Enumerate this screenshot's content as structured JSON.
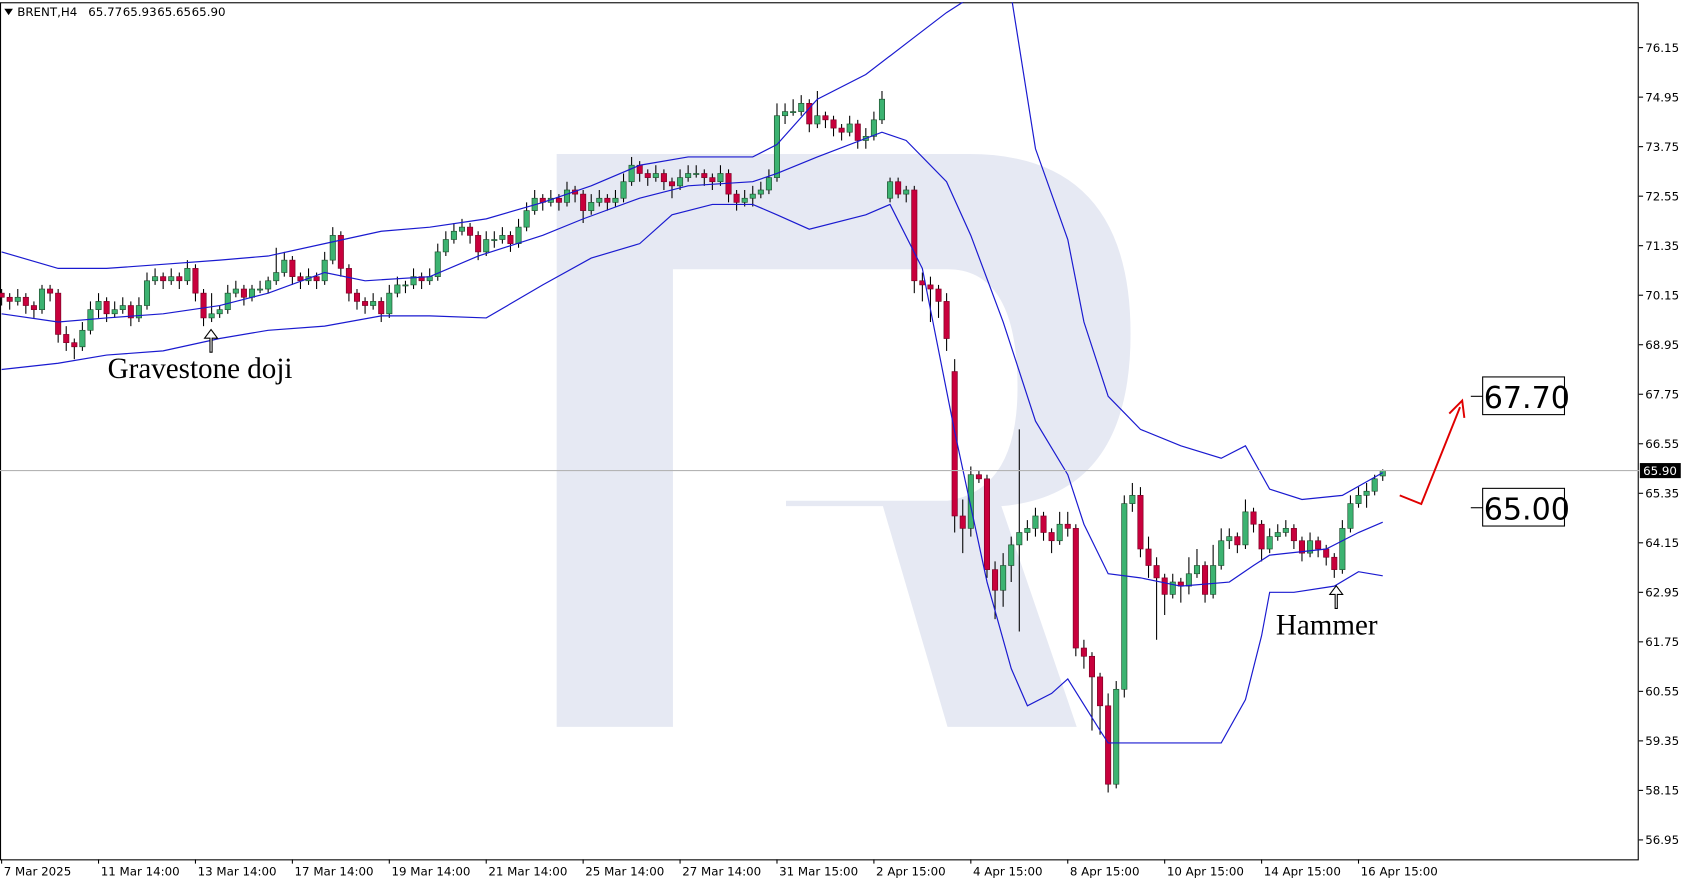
{
  "chart_data": {
    "type": "candlestick",
    "symbol": "BRENT,H4",
    "last_labels": [
      "65.77",
      "65.93",
      "65.65",
      "65.90"
    ],
    "xlim": [
      -0.2,
      202.7
    ],
    "xticks": [
      {
        "value": 0,
        "label": "7 Mar 2025"
      },
      {
        "value": 12,
        "label": "11 Mar 14:00"
      },
      {
        "value": 24,
        "label": "13 Mar 14:00"
      },
      {
        "value": 36,
        "label": "17 Mar 14:00"
      },
      {
        "value": 48,
        "label": "19 Mar 14:00"
      },
      {
        "value": 60,
        "label": "21 Mar 14:00"
      },
      {
        "value": 72,
        "label": "25 Mar 14:00"
      },
      {
        "value": 84,
        "label": "27 Mar 14:00"
      },
      {
        "value": 96,
        "label": "31 Mar 15:00"
      },
      {
        "value": 108,
        "label": "2 Apr 15:00"
      },
      {
        "value": 120,
        "label": "4 Apr 15:00"
      },
      {
        "value": 132,
        "label": "8 Apr 15:00"
      },
      {
        "value": 144,
        "label": "10 Apr 15:00"
      },
      {
        "value": 156,
        "label": "14 Apr 15:00"
      },
      {
        "value": 168,
        "label": "16 Apr 15:00"
      }
    ],
    "ylim": [
      56.48,
      77.25
    ],
    "yticks": [
      56.95,
      58.15,
      59.35,
      60.55,
      61.75,
      62.95,
      64.15,
      65.35,
      66.55,
      67.75,
      68.95,
      70.15,
      71.35,
      72.55,
      73.75,
      74.95,
      76.15
    ],
    "up_color": "#3cb371",
    "down_color": "#c8003c",
    "candles": [
      [
        70.2,
        70.3,
        69.9,
        70.1
      ],
      [
        70.1,
        70.2,
        69.8,
        70.0
      ],
      [
        70.0,
        70.3,
        69.9,
        70.1
      ],
      [
        70.1,
        70.2,
        69.7,
        69.9
      ],
      [
        69.9,
        70.0,
        69.6,
        69.8
      ],
      [
        69.8,
        70.4,
        69.7,
        70.3
      ],
      [
        70.3,
        70.4,
        70.0,
        70.2
      ],
      [
        70.2,
        70.3,
        69.0,
        69.2
      ],
      [
        69.2,
        69.4,
        68.8,
        69.0
      ],
      [
        69.0,
        69.1,
        68.6,
        68.9
      ],
      [
        68.9,
        69.5,
        68.8,
        69.3
      ],
      [
        69.3,
        70.0,
        69.2,
        69.8
      ],
      [
        69.8,
        70.2,
        69.6,
        70.0
      ],
      [
        70.0,
        70.1,
        69.5,
        69.7
      ],
      [
        69.7,
        70.0,
        69.6,
        69.8
      ],
      [
        69.8,
        70.1,
        69.7,
        69.9
      ],
      [
        69.9,
        70.0,
        69.4,
        69.6
      ],
      [
        69.6,
        70.1,
        69.5,
        69.9
      ],
      [
        69.9,
        70.7,
        69.8,
        70.5
      ],
      [
        70.5,
        70.8,
        70.4,
        70.6
      ],
      [
        70.6,
        70.7,
        70.3,
        70.5
      ],
      [
        70.5,
        70.8,
        70.4,
        70.6
      ],
      [
        70.6,
        70.7,
        70.3,
        70.5
      ],
      [
        70.5,
        71.0,
        70.4,
        70.8
      ],
      [
        70.8,
        70.9,
        70.0,
        70.2
      ],
      [
        70.2,
        70.3,
        69.4,
        69.6
      ],
      [
        69.6,
        70.2,
        69.5,
        69.7
      ],
      [
        69.7,
        69.9,
        69.6,
        69.8
      ],
      [
        69.8,
        70.4,
        69.7,
        70.2
      ],
      [
        70.2,
        70.5,
        70.1,
        70.3
      ],
      [
        70.3,
        70.4,
        69.9,
        70.1
      ],
      [
        70.1,
        70.4,
        70.0,
        70.3
      ],
      [
        70.3,
        70.5,
        70.2,
        70.3
      ],
      [
        70.3,
        70.6,
        70.2,
        70.5
      ],
      [
        70.5,
        71.3,
        70.4,
        70.7
      ],
      [
        70.7,
        71.2,
        70.6,
        71.0
      ],
      [
        71.0,
        71.1,
        70.4,
        70.6
      ],
      [
        70.6,
        70.7,
        70.3,
        70.5
      ],
      [
        70.5,
        70.8,
        70.4,
        70.6
      ],
      [
        70.6,
        70.7,
        70.3,
        70.5
      ],
      [
        70.5,
        71.2,
        70.4,
        71.0
      ],
      [
        71.0,
        71.8,
        70.9,
        71.6
      ],
      [
        71.6,
        71.7,
        70.6,
        70.8
      ],
      [
        70.8,
        70.9,
        70.0,
        70.2
      ],
      [
        70.2,
        70.3,
        69.8,
        70.0
      ],
      [
        70.0,
        70.1,
        69.7,
        69.9
      ],
      [
        69.9,
        70.2,
        69.8,
        70.0
      ],
      [
        70.0,
        70.1,
        69.5,
        69.7
      ],
      [
        69.7,
        70.4,
        69.6,
        70.2
      ],
      [
        70.2,
        70.6,
        70.1,
        70.4
      ],
      [
        70.4,
        70.5,
        70.2,
        70.4
      ],
      [
        70.4,
        70.8,
        70.3,
        70.6
      ],
      [
        70.6,
        70.7,
        70.3,
        70.5
      ],
      [
        70.5,
        70.8,
        70.4,
        70.6
      ],
      [
        70.6,
        71.4,
        70.5,
        71.2
      ],
      [
        71.2,
        71.7,
        71.1,
        71.5
      ],
      [
        71.5,
        71.9,
        71.4,
        71.7
      ],
      [
        71.7,
        72.0,
        71.6,
        71.8
      ],
      [
        71.8,
        71.9,
        71.4,
        71.6
      ],
      [
        71.6,
        71.7,
        71.0,
        71.2
      ],
      [
        71.2,
        71.7,
        71.1,
        71.5
      ],
      [
        71.5,
        71.7,
        71.3,
        71.5
      ],
      [
        71.5,
        71.8,
        71.4,
        71.6
      ],
      [
        71.6,
        71.7,
        71.2,
        71.4
      ],
      [
        71.4,
        72.0,
        71.3,
        71.8
      ],
      [
        71.8,
        72.4,
        71.7,
        72.2
      ],
      [
        72.2,
        72.7,
        72.1,
        72.5
      ],
      [
        72.5,
        72.6,
        72.2,
        72.4
      ],
      [
        72.4,
        72.7,
        72.3,
        72.5
      ],
      [
        72.5,
        72.6,
        72.2,
        72.4
      ],
      [
        72.4,
        72.9,
        72.3,
        72.7
      ],
      [
        72.7,
        72.8,
        72.4,
        72.6
      ],
      [
        72.6,
        72.7,
        71.9,
        72.2
      ],
      [
        72.2,
        72.6,
        72.1,
        72.4
      ],
      [
        72.4,
        72.7,
        72.3,
        72.5
      ],
      [
        72.5,
        72.6,
        72.2,
        72.4
      ],
      [
        72.4,
        72.7,
        72.3,
        72.5
      ],
      [
        72.5,
        73.1,
        72.4,
        72.9
      ],
      [
        72.9,
        73.5,
        72.8,
        73.3
      ],
      [
        73.3,
        73.4,
        72.9,
        73.1
      ],
      [
        73.1,
        73.2,
        72.8,
        73.0
      ],
      [
        73.0,
        73.3,
        72.9,
        73.1
      ],
      [
        73.1,
        73.2,
        72.7,
        72.9
      ],
      [
        72.9,
        73.0,
        72.5,
        72.8
      ],
      [
        72.8,
        73.2,
        72.7,
        73.0
      ],
      [
        73.0,
        73.3,
        72.9,
        73.1
      ],
      [
        73.1,
        73.3,
        73.0,
        73.1
      ],
      [
        73.1,
        73.2,
        72.8,
        73.0
      ],
      [
        73.0,
        73.1,
        72.7,
        72.9
      ],
      [
        72.9,
        73.3,
        72.8,
        73.1
      ],
      [
        73.1,
        73.2,
        72.4,
        72.6
      ],
      [
        72.6,
        72.7,
        72.2,
        72.4
      ],
      [
        72.4,
        72.7,
        72.3,
        72.5
      ],
      [
        72.5,
        72.8,
        72.3,
        72.6
      ],
      [
        72.6,
        72.9,
        72.5,
        72.7
      ],
      [
        72.7,
        73.2,
        72.6,
        73.0
      ],
      [
        73.0,
        74.8,
        72.9,
        74.5
      ],
      [
        74.5,
        74.8,
        74.3,
        74.6
      ],
      [
        74.6,
        74.9,
        74.5,
        74.6
      ],
      [
        74.6,
        75.0,
        74.5,
        74.8
      ],
      [
        74.8,
        74.9,
        74.1,
        74.3
      ],
      [
        74.3,
        75.1,
        74.2,
        74.5
      ],
      [
        74.5,
        74.6,
        74.2,
        74.4
      ],
      [
        74.4,
        74.5,
        74.0,
        74.2
      ],
      [
        74.2,
        74.3,
        73.9,
        74.1
      ],
      [
        74.1,
        74.5,
        74.0,
        74.3
      ],
      [
        74.3,
        74.4,
        73.7,
        73.9
      ],
      [
        73.9,
        74.2,
        73.7,
        74.0
      ],
      [
        74.0,
        74.6,
        73.9,
        74.4
      ],
      [
        74.4,
        75.1,
        74.3,
        74.9
      ],
      [
        72.5,
        73.0,
        72.4,
        72.9
      ],
      [
        72.9,
        73.0,
        72.5,
        72.6
      ],
      [
        72.6,
        72.8,
        72.4,
        72.7
      ],
      [
        72.7,
        72.8,
        70.2,
        70.5
      ],
      [
        70.5,
        70.7,
        70.0,
        70.4
      ],
      [
        70.4,
        70.6,
        69.5,
        70.3
      ],
      [
        70.3,
        70.4,
        69.6,
        70.0
      ],
      [
        70.0,
        70.2,
        68.8,
        69.1
      ],
      [
        68.3,
        68.6,
        64.4,
        64.8
      ],
      [
        64.8,
        65.2,
        63.9,
        64.5
      ],
      [
        64.5,
        66.0,
        64.3,
        65.8
      ],
      [
        65.8,
        65.9,
        65.6,
        65.7
      ],
      [
        65.7,
        65.8,
        63.3,
        63.5
      ],
      [
        63.5,
        63.7,
        62.3,
        63.0
      ],
      [
        63.0,
        63.9,
        62.6,
        63.6
      ],
      [
        63.6,
        64.3,
        63.2,
        64.1
      ],
      [
        64.1,
        66.9,
        62.0,
        64.4
      ],
      [
        64.4,
        64.7,
        64.2,
        64.5
      ],
      [
        64.5,
        65.0,
        64.3,
        64.8
      ],
      [
        64.8,
        64.9,
        64.2,
        64.4
      ],
      [
        64.4,
        64.5,
        63.9,
        64.2
      ],
      [
        64.2,
        64.9,
        64.1,
        64.6
      ],
      [
        64.6,
        64.9,
        64.3,
        64.5
      ],
      [
        64.5,
        64.6,
        61.4,
        61.6
      ],
      [
        61.6,
        61.8,
        61.1,
        61.4
      ],
      [
        61.4,
        61.5,
        59.6,
        60.9
      ],
      [
        60.9,
        61.0,
        59.5,
        60.2
      ],
      [
        60.2,
        60.5,
        58.1,
        58.3
      ],
      [
        58.3,
        60.8,
        58.2,
        60.6
      ],
      [
        60.6,
        65.3,
        60.4,
        65.1
      ],
      [
        65.1,
        65.6,
        64.9,
        65.3
      ],
      [
        65.3,
        65.5,
        63.8,
        64.0
      ],
      [
        64.0,
        64.3,
        63.3,
        63.6
      ],
      [
        63.6,
        63.8,
        61.8,
        63.3
      ],
      [
        63.3,
        63.4,
        62.4,
        62.9
      ],
      [
        62.9,
        63.4,
        62.8,
        63.2
      ],
      [
        63.2,
        63.3,
        62.7,
        63.1
      ],
      [
        63.1,
        63.8,
        62.9,
        63.4
      ],
      [
        63.4,
        64.0,
        63.3,
        63.6
      ],
      [
        63.6,
        63.7,
        62.7,
        62.9
      ],
      [
        62.9,
        64.1,
        62.8,
        63.6
      ],
      [
        63.6,
        64.5,
        63.5,
        64.2
      ],
      [
        64.2,
        64.5,
        64.0,
        64.3
      ],
      [
        64.3,
        64.4,
        63.9,
        64.1
      ],
      [
        64.1,
        65.2,
        64.0,
        64.9
      ],
      [
        64.9,
        65.0,
        64.4,
        64.6
      ],
      [
        64.6,
        64.7,
        63.7,
        64.0
      ],
      [
        64.0,
        64.5,
        63.9,
        64.3
      ],
      [
        64.3,
        64.6,
        64.2,
        64.4
      ],
      [
        64.4,
        64.7,
        64.3,
        64.5
      ],
      [
        64.5,
        64.6,
        64.0,
        64.2
      ],
      [
        64.2,
        64.3,
        63.7,
        63.9
      ],
      [
        63.9,
        64.4,
        63.8,
        64.2
      ],
      [
        64.2,
        64.3,
        63.8,
        64.0
      ],
      [
        64.0,
        64.1,
        63.6,
        63.8
      ],
      [
        63.8,
        63.9,
        63.3,
        63.5
      ],
      [
        63.5,
        64.7,
        63.4,
        64.5
      ],
      [
        64.5,
        65.3,
        64.4,
        65.1
      ],
      [
        65.1,
        65.5,
        65.0,
        65.3
      ],
      [
        65.3,
        65.6,
        65.0,
        65.4
      ],
      [
        65.4,
        65.8,
        65.3,
        65.7
      ],
      [
        65.77,
        65.93,
        65.65,
        65.9
      ]
    ],
    "series": [
      {
        "color": "#1a1ad0",
        "x": [
          0,
          7,
          13,
          20,
          27,
          33,
          40,
          47,
          53,
          60,
          67,
          73,
          79,
          85,
          93,
          96,
          101,
          107,
          113,
          117,
          121,
          125,
          128,
          132,
          134,
          137,
          139,
          141,
          146,
          151,
          154,
          157,
          161,
          166,
          171
        ],
        "values": [
          71.2,
          70.8,
          70.8,
          70.9,
          71.0,
          71.1,
          71.4,
          71.7,
          71.8,
          72.0,
          72.4,
          72.8,
          73.3,
          73.5,
          73.5,
          73.8,
          74.9,
          75.5,
          76.4,
          77.0,
          77.5,
          77.4,
          73.7,
          71.5,
          69.5,
          67.7,
          67.3,
          66.9,
          66.5,
          66.2,
          66.5,
          65.45,
          65.2,
          65.3,
          65.85
        ]
      },
      {
        "color": "#1a1ad0",
        "x": [
          0,
          7,
          13,
          20,
          27,
          33,
          40,
          45,
          53,
          59,
          67,
          72,
          79,
          85,
          93,
          96,
          101,
          109,
          112,
          117,
          120,
          124,
          128,
          132,
          134,
          137,
          141,
          146,
          152,
          155,
          157,
          164,
          168,
          171
        ],
        "values": [
          69.7,
          69.5,
          69.6,
          69.7,
          69.9,
          70.2,
          70.7,
          70.5,
          70.6,
          71.1,
          71.6,
          72.0,
          72.5,
          72.8,
          72.9,
          73.1,
          73.5,
          74.1,
          73.9,
          72.9,
          71.6,
          69.5,
          67.1,
          65.8,
          64.6,
          63.4,
          63.3,
          63.1,
          63.2,
          63.6,
          63.85,
          64.0,
          64.4,
          64.65
        ]
      },
      {
        "color": "#1a1ad0",
        "x": [
          0,
          7,
          13,
          20,
          27,
          33,
          40,
          47,
          53,
          60,
          67,
          73,
          79,
          83,
          88,
          93,
          96,
          100,
          107,
          110,
          114,
          118,
          122,
          125,
          127,
          130,
          132,
          136,
          137,
          140,
          151,
          154,
          156,
          157,
          160,
          165,
          168,
          171
        ],
        "values": [
          68.35,
          68.5,
          68.7,
          68.8,
          69.1,
          69.3,
          69.4,
          69.65,
          69.65,
          69.6,
          70.4,
          71.05,
          71.4,
          72.1,
          72.35,
          72.35,
          72.1,
          71.75,
          72.1,
          72.35,
          70.8,
          66.85,
          63.2,
          61.1,
          60.2,
          60.5,
          60.85,
          59.6,
          59.3,
          59.3,
          59.3,
          60.35,
          61.9,
          62.95,
          62.95,
          63.1,
          63.45,
          63.35
        ]
      }
    ],
    "annotations": [
      "Gravestone doji",
      "Hammer"
    ],
    "levels": [
      {
        "value": 67.7,
        "label": "67.70"
      },
      {
        "value": 65,
        "label": "65.00"
      }
    ]
  }
}
